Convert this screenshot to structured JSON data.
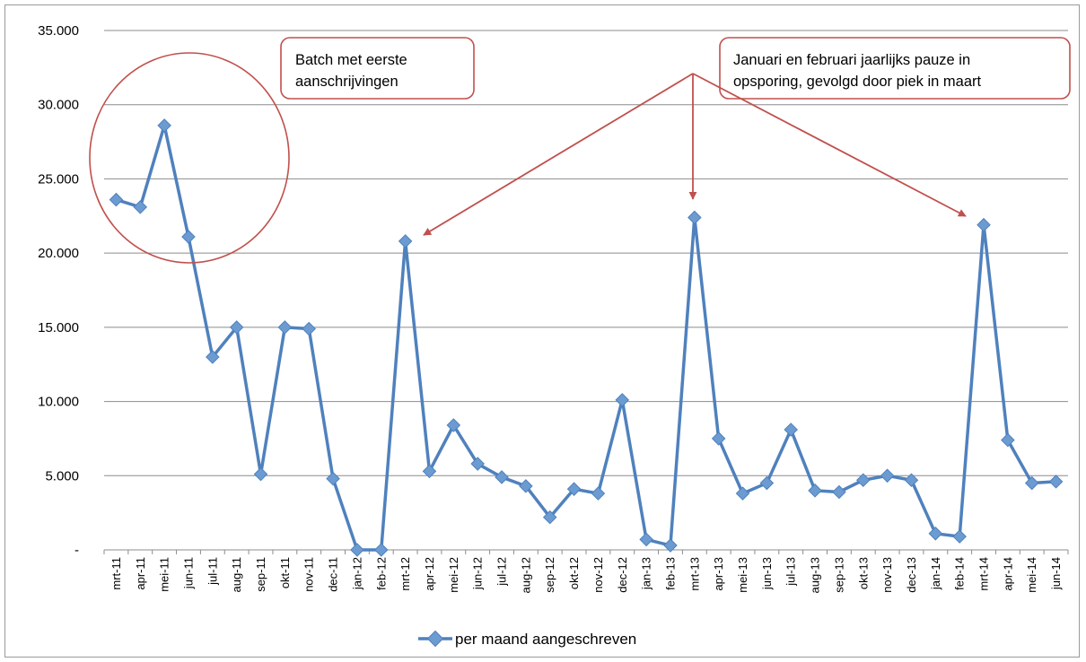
{
  "chart_data": {
    "type": "line",
    "title": "",
    "xlabel": "",
    "ylabel": "",
    "ylim": [
      0,
      35000
    ],
    "yticks": [
      0,
      5000,
      10000,
      15000,
      20000,
      25000,
      30000,
      35000
    ],
    "ytick_labels": [
      "-",
      "5.000",
      "10.000",
      "15.000",
      "20.000",
      "25.000",
      "30.000",
      "35.000"
    ],
    "grid": true,
    "legend": "bottom",
    "categories": [
      "mrt-11",
      "apr-11",
      "mei-11",
      "jun-11",
      "jul-11",
      "aug-11",
      "sep-11",
      "okt-11",
      "nov-11",
      "dec-11",
      "jan-12",
      "feb-12",
      "mrt-12",
      "apr-12",
      "mei-12",
      "jun-12",
      "jul-12",
      "aug-12",
      "sep-12",
      "okt-12",
      "nov-12",
      "dec-12",
      "jan-13",
      "feb-13",
      "mrt-13",
      "apr-13",
      "mei-13",
      "jun-13",
      "jul-13",
      "aug-13",
      "sep-13",
      "okt-13",
      "nov-13",
      "dec-13",
      "jan-14",
      "feb-14",
      "mrt-14",
      "apr-14",
      "mei-14",
      "jun-14"
    ],
    "series": [
      {
        "name": "per maand aangeschreven",
        "color": "#4f81bd",
        "values": [
          23600,
          23100,
          28600,
          21100,
          13000,
          15000,
          5100,
          15000,
          14900,
          4800,
          0,
          0,
          20800,
          5300,
          8400,
          5800,
          4900,
          4300,
          2200,
          4100,
          3800,
          10100,
          700,
          300,
          22400,
          7500,
          3800,
          4500,
          8100,
          4000,
          3900,
          4700,
          5000,
          4700,
          1100,
          900,
          21900,
          7400,
          4500,
          4600
        ]
      }
    ],
    "annotations": [
      {
        "text_lines": [
          "Batch met eerste",
          "aanschrijvingen"
        ],
        "color": "#c0504d"
      },
      {
        "text_lines": [
          "Januari en februari jaarlijks pauze in",
          "opsporing, gevolgd door piek in maart"
        ],
        "color": "#c0504d"
      }
    ]
  }
}
